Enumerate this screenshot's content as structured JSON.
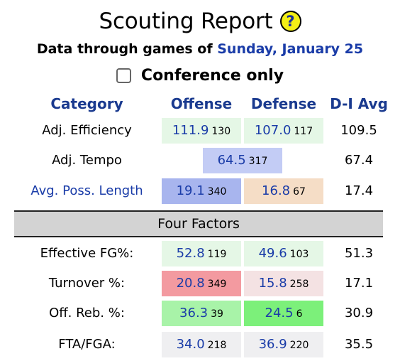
{
  "title": "Scouting Report",
  "help_icon": "question-mark-icon",
  "subtitle_prefix": "Data through games of",
  "subtitle_date": "Sunday, January 25",
  "conference_only_label": "Conference only",
  "headers": {
    "category": "Category",
    "offense": "Offense",
    "defense": "Defense",
    "d1avg": "D-I Avg"
  },
  "rows": {
    "adj_efficiency": {
      "label": "Adj. Efficiency",
      "off_value": "111.9",
      "off_rank": "130",
      "def_value": "107.0",
      "def_rank": "117",
      "avg": "109.5"
    },
    "adj_tempo": {
      "label": "Adj. Tempo",
      "value": "64.5",
      "rank": "317",
      "avg": "67.4"
    },
    "avg_poss_length": {
      "label": "Avg. Poss. Length",
      "off_value": "19.1",
      "off_rank": "340",
      "def_value": "16.8",
      "def_rank": "67",
      "avg": "17.4"
    }
  },
  "section_label": "Four Factors",
  "four_factors": {
    "efg": {
      "label": "Effective FG%:",
      "off_value": "52.8",
      "off_rank": "119",
      "def_value": "49.6",
      "def_rank": "103",
      "avg": "51.3"
    },
    "to": {
      "label": "Turnover %:",
      "off_value": "20.8",
      "off_rank": "349",
      "def_value": "15.8",
      "def_rank": "258",
      "avg": "17.1"
    },
    "orb": {
      "label": "Off. Reb. %:",
      "off_value": "36.3",
      "off_rank": "39",
      "def_value": "24.5",
      "def_rank": "6",
      "avg": "30.9"
    },
    "ftr": {
      "label": "FTA/FGA:",
      "off_value": "34.0",
      "off_rank": "218",
      "def_value": "36.9",
      "def_rank": "220",
      "avg": "35.5"
    }
  },
  "colors": {
    "header_blue": "#1a3a8f",
    "value_blue": "#1a3ca8",
    "help_yellow": "#f3ee16",
    "light_green": "#e5f7e6",
    "periwinkle": "#c3ccf5",
    "blue": "#a8b5ee",
    "peach": "#f5ddc6",
    "red": "#f39aa0",
    "pink_light": "#f4e2e3",
    "green": "#a8f3a8",
    "bright_green": "#7cf07a",
    "gray_cell": "#efeff1",
    "band_gray": "#d3d3d3"
  }
}
